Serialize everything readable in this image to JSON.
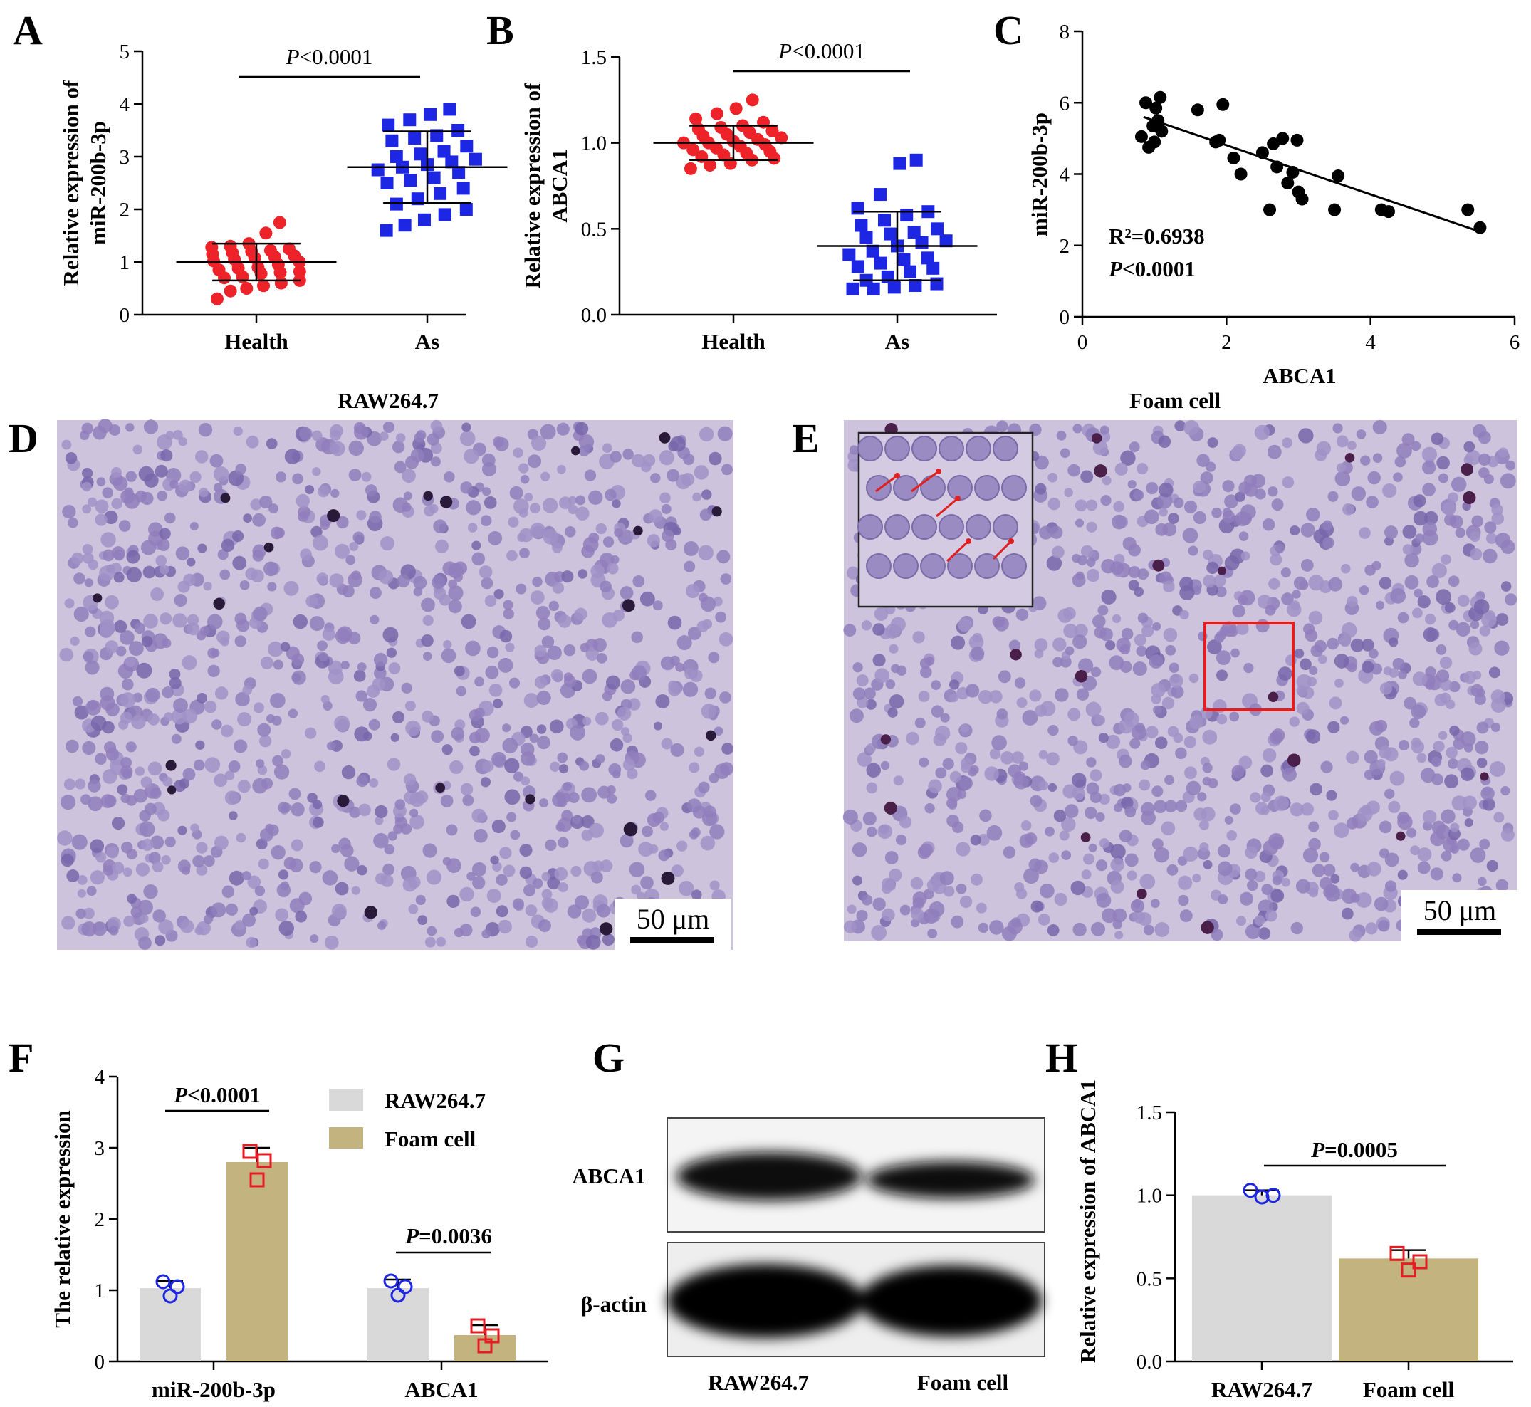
{
  "panels": {
    "A": {
      "letter": "A"
    },
    "B": {
      "letter": "B"
    },
    "C": {
      "letter": "C"
    },
    "D": {
      "letter": "D",
      "title": "RAW264.7",
      "scalebar": "50 μm"
    },
    "E": {
      "letter": "E",
      "title": "Foam cell",
      "scalebar": "50 μm"
    },
    "F": {
      "letter": "F"
    },
    "G": {
      "letter": "G",
      "rows": [
        "ABCA1",
        "β-actin"
      ],
      "lanes": [
        "RAW264.7",
        "Foam cell"
      ]
    },
    "H": {
      "letter": "H"
    }
  },
  "colors": {
    "health": "#ee2229",
    "as": "#1d27e3",
    "raw_bar": "#d9d9d9",
    "foam_bar": "#c2b37f",
    "raw_marker": "#1d27e3",
    "foam_marker": "#e51c24",
    "cell_bg": "#cdc3dc",
    "cell": "#8877b6",
    "inset_box": "#e02020"
  },
  "chart_data": [
    {
      "panel": "A",
      "type": "scatter",
      "ylabel": "Relative expression of miR-200b-3p",
      "ylabel_lines": [
        "Relative expression of",
        "miR-200b-3p"
      ],
      "categories": [
        "Health",
        "As"
      ],
      "ylim": [
        0,
        5
      ],
      "yticks": [
        0,
        1,
        2,
        3,
        4,
        5
      ],
      "annotation": {
        "pre": "P",
        "post": "<0.0001"
      },
      "series": [
        {
          "name": "Health",
          "mean": 1.0,
          "sd": 0.35,
          "values": [
            0.3,
            0.45,
            0.5,
            0.55,
            0.6,
            0.65,
            0.7,
            0.72,
            0.78,
            0.8,
            0.82,
            0.85,
            0.88,
            0.9,
            0.95,
            1.0,
            1.02,
            1.05,
            1.08,
            1.1,
            1.12,
            1.15,
            1.18,
            1.2,
            1.22,
            1.25,
            1.28,
            1.3,
            1.35,
            1.55,
            1.75
          ]
        },
        {
          "name": "As",
          "mean": 2.8,
          "sd": 0.68,
          "values": [
            1.6,
            1.7,
            1.8,
            1.9,
            2.0,
            2.1,
            2.2,
            2.3,
            2.4,
            2.5,
            2.55,
            2.6,
            2.7,
            2.75,
            2.8,
            2.85,
            2.9,
            2.95,
            3.0,
            3.05,
            3.1,
            3.2,
            3.3,
            3.35,
            3.4,
            3.5,
            3.6,
            3.7,
            3.8,
            3.9
          ]
        }
      ]
    },
    {
      "panel": "B",
      "type": "scatter",
      "ylabel": "Relative expression of ABCA1",
      "ylabel_lines": [
        "Relative expression of",
        "ABCA1"
      ],
      "categories": [
        "Health",
        "As"
      ],
      "ylim": [
        0,
        1.5
      ],
      "yticks": [
        0.0,
        0.5,
        1.0,
        1.5
      ],
      "annotation": {
        "pre": "P",
        "post": "<0.0001"
      },
      "series": [
        {
          "name": "Health",
          "mean": 1.0,
          "sd": 0.1,
          "values": [
            0.85,
            0.87,
            0.88,
            0.9,
            0.91,
            0.92,
            0.93,
            0.94,
            0.95,
            0.96,
            0.97,
            0.98,
            0.99,
            1.0,
            1.0,
            1.01,
            1.02,
            1.03,
            1.04,
            1.05,
            1.06,
            1.07,
            1.08,
            1.09,
            1.1,
            1.12,
            1.14,
            1.17,
            1.2,
            1.25
          ]
        },
        {
          "name": "As",
          "mean": 0.4,
          "sd": 0.2,
          "values": [
            0.15,
            0.15,
            0.16,
            0.17,
            0.18,
            0.2,
            0.22,
            0.25,
            0.27,
            0.28,
            0.3,
            0.32,
            0.33,
            0.35,
            0.37,
            0.4,
            0.42,
            0.43,
            0.45,
            0.47,
            0.48,
            0.5,
            0.52,
            0.55,
            0.58,
            0.6,
            0.62,
            0.7,
            0.88,
            0.9
          ]
        }
      ]
    },
    {
      "panel": "C",
      "type": "scatter",
      "xlabel": "ABCA1",
      "ylabel": "miR-200b-3p",
      "xlim": [
        0,
        6
      ],
      "ylim": [
        0,
        8
      ],
      "xticks": [
        0,
        2,
        4,
        6
      ],
      "yticks": [
        0,
        2,
        4,
        6,
        8
      ],
      "annotation": {
        "r2": "R²=0.6938",
        "p_pre": "P",
        "p_post": "<0.0001"
      },
      "fit": {
        "x": [
          0.85,
          5.5
        ],
        "y": [
          5.6,
          2.4
        ]
      },
      "points": [
        {
          "x": 0.82,
          "y": 5.05
        },
        {
          "x": 0.88,
          "y": 6.0
        },
        {
          "x": 0.92,
          "y": 4.75
        },
        {
          "x": 0.98,
          "y": 5.35
        },
        {
          "x": 1.0,
          "y": 4.9
        },
        {
          "x": 1.02,
          "y": 5.85
        },
        {
          "x": 1.05,
          "y": 5.5
        },
        {
          "x": 1.08,
          "y": 6.15
        },
        {
          "x": 1.1,
          "y": 5.2
        },
        {
          "x": 1.6,
          "y": 5.8
        },
        {
          "x": 1.85,
          "y": 4.9
        },
        {
          "x": 1.95,
          "y": 5.95
        },
        {
          "x": 1.9,
          "y": 4.95
        },
        {
          "x": 2.1,
          "y": 4.45
        },
        {
          "x": 2.2,
          "y": 4.0
        },
        {
          "x": 2.5,
          "y": 4.6
        },
        {
          "x": 2.6,
          "y": 3.0
        },
        {
          "x": 2.65,
          "y": 4.85
        },
        {
          "x": 2.7,
          "y": 4.2
        },
        {
          "x": 2.78,
          "y": 5.0
        },
        {
          "x": 2.85,
          "y": 3.75
        },
        {
          "x": 2.92,
          "y": 4.05
        },
        {
          "x": 2.98,
          "y": 4.95
        },
        {
          "x": 3.0,
          "y": 3.5
        },
        {
          "x": 3.05,
          "y": 3.3
        },
        {
          "x": 3.5,
          "y": 3.0
        },
        {
          "x": 3.55,
          "y": 3.95
        },
        {
          "x": 4.15,
          "y": 3.0
        },
        {
          "x": 4.25,
          "y": 2.95
        },
        {
          "x": 5.35,
          "y": 3.0
        },
        {
          "x": 5.52,
          "y": 2.5
        }
      ]
    },
    {
      "panel": "F",
      "type": "bar",
      "ylabel": "The relative expression",
      "categories": [
        "miR-200b-3p",
        "ABCA1"
      ],
      "ylim": [
        0,
        4
      ],
      "yticks": [
        0,
        1,
        2,
        3,
        4
      ],
      "legend": [
        "RAW264.7",
        "Foam cell"
      ],
      "series": [
        {
          "name": "RAW264.7",
          "values": [
            1.03,
            1.03
          ],
          "sem": [
            0.1,
            0.12
          ],
          "points": [
            [
              1.12,
              0.92,
              1.05
            ],
            [
              1.13,
              0.93,
              1.05
            ]
          ]
        },
        {
          "name": "Foam cell",
          "values": [
            2.8,
            0.37
          ],
          "sem": [
            0.2,
            0.14
          ],
          "points": [
            [
              2.95,
              2.55,
              2.82
            ],
            [
              0.5,
              0.22,
              0.36
            ]
          ]
        }
      ],
      "annotations": [
        {
          "pre": "P",
          "post": "<0.0001"
        },
        {
          "pre": "P",
          "post": "=0.0036"
        }
      ]
    },
    {
      "panel": "H",
      "type": "bar",
      "ylabel": "Relative expression of ABCA1",
      "categories": [
        "RAW264.7",
        "Foam cell"
      ],
      "ylim": [
        0,
        1.5
      ],
      "yticks": [
        0.0,
        0.5,
        1.0,
        1.5
      ],
      "values": [
        1.0,
        0.62
      ],
      "sem": [
        0.03,
        0.05
      ],
      "points": [
        [
          1.03,
          0.99,
          1.0
        ],
        [
          0.65,
          0.55,
          0.6
        ]
      ],
      "annotation": {
        "pre": "P",
        "post": "=0.0005"
      }
    }
  ]
}
